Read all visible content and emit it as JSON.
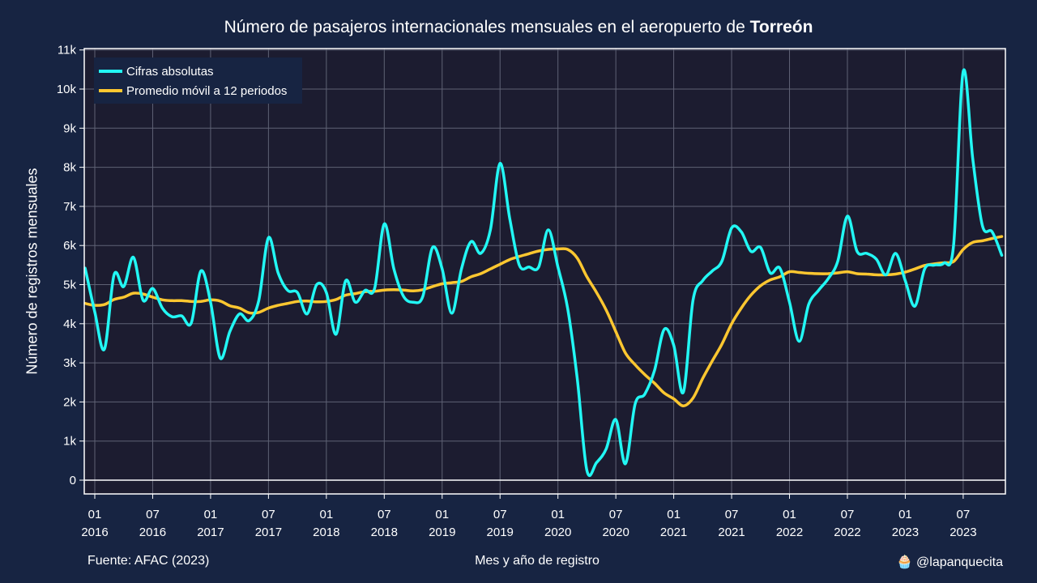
{
  "title": {
    "prefix": "Número de pasajeros internacionales mensuales en el aeropuerto de",
    "emphasis": "Torreón"
  },
  "footer": {
    "source": "Fuente: AFAC (2023)",
    "xlabel": "Mes y año de registro",
    "credit_icon": "cupcake-icon",
    "credit_emoji": "🧁",
    "credit": "@lapanquecita"
  },
  "colors": {
    "background": "#172442",
    "plot_bg": "#1c1c30",
    "raw": "#22f7f4",
    "avg": "#fdc730",
    "grid": "#5f6275",
    "axis": "#ffffff"
  },
  "chart_data": {
    "type": "line",
    "title": "Número de pasajeros internacionales mensuales en el aeropuerto de Torreón",
    "xlabel": "Mes y año de registro",
    "ylabel": "Número de registros mensuales",
    "x_start": "2016-01",
    "x_end": "2023-09",
    "ylim": [
      -350,
      11000
    ],
    "y_ticks": [
      0,
      1000,
      2000,
      3000,
      4000,
      5000,
      6000,
      7000,
      8000,
      9000,
      10000,
      11000
    ],
    "y_tick_labels": [
      "0",
      "1k",
      "2k",
      "3k",
      "4k",
      "5k",
      "6k",
      "7k",
      "8k",
      "9k",
      "10k",
      "11k"
    ],
    "x_ticks": [
      {
        "month": "01",
        "year": "2016"
      },
      {
        "month": "07",
        "year": "2016"
      },
      {
        "month": "01",
        "year": "2017"
      },
      {
        "month": "07",
        "year": "2017"
      },
      {
        "month": "01",
        "year": "2018"
      },
      {
        "month": "07",
        "year": "2018"
      },
      {
        "month": "01",
        "year": "2019"
      },
      {
        "month": "07",
        "year": "2019"
      },
      {
        "month": "01",
        "year": "2020"
      },
      {
        "month": "07",
        "year": "2020"
      },
      {
        "month": "01",
        "year": "2021"
      },
      {
        "month": "07",
        "year": "2021"
      },
      {
        "month": "01",
        "year": "2022"
      },
      {
        "month": "07",
        "year": "2022"
      },
      {
        "month": "01",
        "year": "2023"
      },
      {
        "month": "07",
        "year": "2023"
      }
    ],
    "grid": true,
    "legend_position": "top-left",
    "series": [
      {
        "name": "Cifras absolutas",
        "color": "#22f7f4",
        "points": [
          [
            "2015-12",
            5420
          ],
          [
            "2016-01",
            4300
          ],
          [
            "2016-02",
            3350
          ],
          [
            "2016-03",
            5250
          ],
          [
            "2016-04",
            4950
          ],
          [
            "2016-05",
            5700
          ],
          [
            "2016-06",
            4600
          ],
          [
            "2016-07",
            4900
          ],
          [
            "2016-08",
            4400
          ],
          [
            "2016-09",
            4180
          ],
          [
            "2016-10",
            4200
          ],
          [
            "2016-11",
            4020
          ],
          [
            "2016-12",
            5350
          ],
          [
            "2017-01",
            4550
          ],
          [
            "2017-02",
            3120
          ],
          [
            "2017-03",
            3800
          ],
          [
            "2017-04",
            4250
          ],
          [
            "2017-05",
            4080
          ],
          [
            "2017-06",
            4600
          ],
          [
            "2017-07",
            6200
          ],
          [
            "2017-08",
            5300
          ],
          [
            "2017-09",
            4850
          ],
          [
            "2017-10",
            4800
          ],
          [
            "2017-11",
            4250
          ],
          [
            "2017-12",
            5000
          ],
          [
            "2018-01",
            4800
          ],
          [
            "2018-02",
            3730
          ],
          [
            "2018-03",
            5100
          ],
          [
            "2018-04",
            4550
          ],
          [
            "2018-05",
            4850
          ],
          [
            "2018-06",
            4900
          ],
          [
            "2018-07",
            6550
          ],
          [
            "2018-08",
            5400
          ],
          [
            "2018-09",
            4700
          ],
          [
            "2018-10",
            4550
          ],
          [
            "2018-11",
            4700
          ],
          [
            "2018-12",
            5950
          ],
          [
            "2019-01",
            5400
          ],
          [
            "2019-02",
            4270
          ],
          [
            "2019-03",
            5400
          ],
          [
            "2019-04",
            6100
          ],
          [
            "2019-05",
            5800
          ],
          [
            "2019-06",
            6400
          ],
          [
            "2019-07",
            8100
          ],
          [
            "2019-08",
            6700
          ],
          [
            "2019-09",
            5500
          ],
          [
            "2019-10",
            5450
          ],
          [
            "2019-11",
            5450
          ],
          [
            "2019-12",
            6400
          ],
          [
            "2020-01",
            5450
          ],
          [
            "2020-02",
            4400
          ],
          [
            "2020-03",
            2600
          ],
          [
            "2020-04",
            250
          ],
          [
            "2020-05",
            450
          ],
          [
            "2020-06",
            800
          ],
          [
            "2020-07",
            1550
          ],
          [
            "2020-08",
            420
          ],
          [
            "2020-09",
            1950
          ],
          [
            "2020-10",
            2200
          ],
          [
            "2020-11",
            2800
          ],
          [
            "2020-12",
            3850
          ],
          [
            "2021-01",
            3450
          ],
          [
            "2021-02",
            2250
          ],
          [
            "2021-03",
            4600
          ],
          [
            "2021-04",
            5100
          ],
          [
            "2021-05",
            5350
          ],
          [
            "2021-06",
            5600
          ],
          [
            "2021-07",
            6450
          ],
          [
            "2021-08",
            6350
          ],
          [
            "2021-09",
            5850
          ],
          [
            "2021-10",
            5950
          ],
          [
            "2021-11",
            5300
          ],
          [
            "2021-12",
            5420
          ],
          [
            "2022-01",
            4550
          ],
          [
            "2022-02",
            3550
          ],
          [
            "2022-03",
            4500
          ],
          [
            "2022-04",
            4850
          ],
          [
            "2022-05",
            5150
          ],
          [
            "2022-06",
            5600
          ],
          [
            "2022-07",
            6750
          ],
          [
            "2022-08",
            5850
          ],
          [
            "2022-09",
            5800
          ],
          [
            "2022-10",
            5650
          ],
          [
            "2022-11",
            5250
          ],
          [
            "2022-12",
            5800
          ],
          [
            "2023-01",
            5100
          ],
          [
            "2023-02",
            4450
          ],
          [
            "2023-03",
            5400
          ],
          [
            "2023-04",
            5500
          ],
          [
            "2023-05",
            5550
          ],
          [
            "2023-06",
            6000
          ],
          [
            "2023-07",
            10450
          ],
          [
            "2023-08",
            8200
          ],
          [
            "2023-09",
            6500
          ],
          [
            "2023-10",
            6350
          ],
          [
            "2023-11",
            5750
          ]
        ]
      },
      {
        "name": "Promedio móvil a 12 periodos",
        "color": "#fdc730",
        "points": [
          [
            "2015-12",
            4520
          ],
          [
            "2016-01",
            4470
          ],
          [
            "2016-02",
            4490
          ],
          [
            "2016-03",
            4620
          ],
          [
            "2016-04",
            4680
          ],
          [
            "2016-05",
            4780
          ],
          [
            "2016-06",
            4760
          ],
          [
            "2016-07",
            4680
          ],
          [
            "2016-08",
            4610
          ],
          [
            "2016-09",
            4590
          ],
          [
            "2016-10",
            4590
          ],
          [
            "2016-11",
            4570
          ],
          [
            "2016-12",
            4570
          ],
          [
            "2017-01",
            4610
          ],
          [
            "2017-02",
            4580
          ],
          [
            "2017-03",
            4460
          ],
          [
            "2017-04",
            4400
          ],
          [
            "2017-05",
            4280
          ],
          [
            "2017-06",
            4290
          ],
          [
            "2017-07",
            4400
          ],
          [
            "2017-08",
            4470
          ],
          [
            "2017-09",
            4520
          ],
          [
            "2017-10",
            4570
          ],
          [
            "2017-11",
            4580
          ],
          [
            "2017-12",
            4560
          ],
          [
            "2018-01",
            4570
          ],
          [
            "2018-02",
            4620
          ],
          [
            "2018-03",
            4730
          ],
          [
            "2018-04",
            4770
          ],
          [
            "2018-05",
            4820
          ],
          [
            "2018-06",
            4830
          ],
          [
            "2018-07",
            4860
          ],
          [
            "2018-08",
            4870
          ],
          [
            "2018-09",
            4860
          ],
          [
            "2018-10",
            4840
          ],
          [
            "2018-11",
            4870
          ],
          [
            "2018-12",
            4950
          ],
          [
            "2019-01",
            5020
          ],
          [
            "2019-02",
            5050
          ],
          [
            "2019-03",
            5080
          ],
          [
            "2019-04",
            5200
          ],
          [
            "2019-05",
            5280
          ],
          [
            "2019-06",
            5400
          ],
          [
            "2019-07",
            5520
          ],
          [
            "2019-08",
            5640
          ],
          [
            "2019-09",
            5720
          ],
          [
            "2019-10",
            5790
          ],
          [
            "2019-11",
            5860
          ],
          [
            "2019-12",
            5900
          ],
          [
            "2020-01",
            5910
          ],
          [
            "2020-02",
            5900
          ],
          [
            "2020-03",
            5680
          ],
          [
            "2020-04",
            5200
          ],
          [
            "2020-05",
            4800
          ],
          [
            "2020-06",
            4350
          ],
          [
            "2020-07",
            3800
          ],
          [
            "2020-08",
            3250
          ],
          [
            "2020-09",
            2950
          ],
          [
            "2020-10",
            2700
          ],
          [
            "2020-11",
            2480
          ],
          [
            "2020-12",
            2230
          ],
          [
            "2021-01",
            2080
          ],
          [
            "2021-02",
            1900
          ],
          [
            "2021-03",
            2100
          ],
          [
            "2021-04",
            2600
          ],
          [
            "2021-05",
            3050
          ],
          [
            "2021-06",
            3480
          ],
          [
            "2021-07",
            4000
          ],
          [
            "2021-08",
            4400
          ],
          [
            "2021-09",
            4730
          ],
          [
            "2021-10",
            4970
          ],
          [
            "2021-11",
            5120
          ],
          [
            "2021-12",
            5200
          ],
          [
            "2022-01",
            5330
          ],
          [
            "2022-02",
            5310
          ],
          [
            "2022-03",
            5290
          ],
          [
            "2022-04",
            5280
          ],
          [
            "2022-05",
            5280
          ],
          [
            "2022-06",
            5300
          ],
          [
            "2022-07",
            5330
          ],
          [
            "2022-08",
            5280
          ],
          [
            "2022-09",
            5270
          ],
          [
            "2022-10",
            5250
          ],
          [
            "2022-11",
            5250
          ],
          [
            "2022-12",
            5270
          ],
          [
            "2023-01",
            5320
          ],
          [
            "2023-02",
            5400
          ],
          [
            "2023-03",
            5490
          ],
          [
            "2023-04",
            5530
          ],
          [
            "2023-05",
            5560
          ],
          [
            "2023-06",
            5590
          ],
          [
            "2023-07",
            5900
          ],
          [
            "2023-08",
            6080
          ],
          [
            "2023-09",
            6120
          ],
          [
            "2023-10",
            6180
          ],
          [
            "2023-11",
            6230
          ]
        ]
      }
    ]
  }
}
